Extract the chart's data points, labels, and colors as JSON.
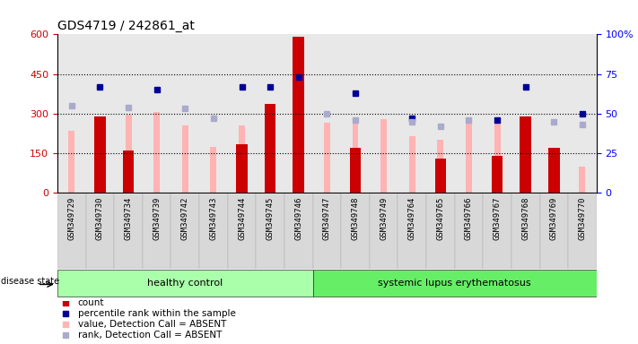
{
  "title": "GDS4719 / 242861_at",
  "samples": [
    "GSM349729",
    "GSM349730",
    "GSM349734",
    "GSM349739",
    "GSM349742",
    "GSM349743",
    "GSM349744",
    "GSM349745",
    "GSM349746",
    "GSM349747",
    "GSM349748",
    "GSM349749",
    "GSM349764",
    "GSM349765",
    "GSM349766",
    "GSM349767",
    "GSM349768",
    "GSM349769",
    "GSM349770"
  ],
  "count": [
    0,
    290,
    160,
    0,
    0,
    0,
    185,
    335,
    590,
    0,
    170,
    0,
    0,
    130,
    0,
    140,
    290,
    170,
    0
  ],
  "percentile_rank": [
    null,
    67,
    null,
    65,
    null,
    null,
    67,
    67,
    73,
    null,
    63,
    null,
    47,
    null,
    null,
    46,
    67,
    null,
    50
  ],
  "value_absent": [
    235,
    null,
    295,
    305,
    255,
    175,
    255,
    null,
    null,
    265,
    260,
    280,
    215,
    200,
    260,
    260,
    null,
    null,
    100
  ],
  "rank_absent": [
    55,
    null,
    54,
    null,
    53,
    47,
    null,
    null,
    null,
    50,
    46,
    null,
    45,
    42,
    46,
    null,
    null,
    45,
    43
  ],
  "ylim_left": [
    0,
    600
  ],
  "ylim_right": [
    0,
    100
  ],
  "yticks_left": [
    0,
    150,
    300,
    450,
    600
  ],
  "yticks_right": [
    0,
    25,
    50,
    75,
    100
  ],
  "left_color": "#cc0000",
  "bar_color_count": "#cc0000",
  "bar_color_value_absent": "#ffb3b3",
  "dot_color_percentile": "#000099",
  "dot_color_rank_absent": "#aaaacc",
  "hc_count": 9,
  "hc_color": "#aaffaa",
  "sle_color": "#66ee66",
  "background_color": "#ffffff",
  "title_fontsize": 10,
  "legend_items": [
    "count",
    "percentile rank within the sample",
    "value, Detection Call = ABSENT",
    "rank, Detection Call = ABSENT"
  ],
  "legend_colors": [
    "#cc0000",
    "#000099",
    "#ffb3b3",
    "#aaaacc"
  ]
}
